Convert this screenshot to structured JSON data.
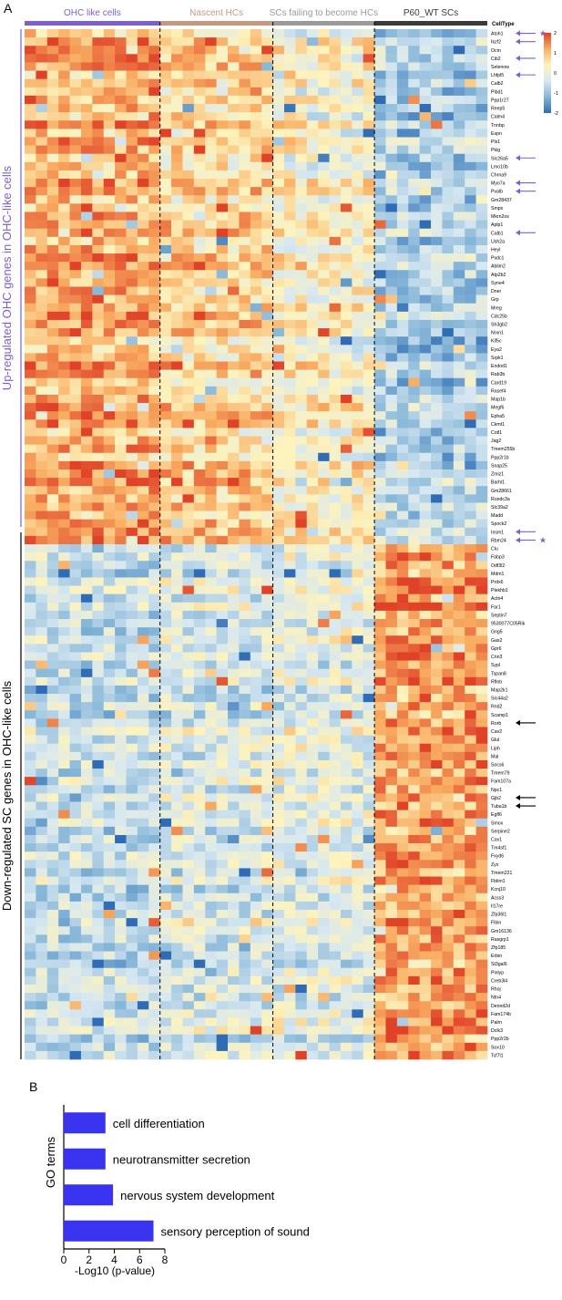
{
  "chart_data": [
    {
      "type": "heatmap",
      "panel_label": "A",
      "groups": [
        {
          "name": "OHC like cells",
          "color": "#7f5fcf",
          "columns": 12
        },
        {
          "name": "Nascent HCs",
          "color": "#c9977f",
          "columns": 10
        },
        {
          "name": "SCs failing to become HCs",
          "color": "#9a9a9a",
          "columns": 9
        },
        {
          "name": "P60_WT SCs",
          "color": "#3a3a3a",
          "columns": 10
        }
      ],
      "column_header": "CellType",
      "upregulated_block": {
        "label": "Up-regulated OHC genes in OHC-like cells",
        "color": "#7f5fcf",
        "genes": [
          "Atoh1",
          "Ikzf2",
          "Ocm",
          "Cib2",
          "Selenow",
          "Lhfpl5",
          "Calb2",
          "Pibd1",
          "Ppp1r27",
          "Reep5",
          "Calm4",
          "Tnnbp",
          "Espn",
          "Pls1",
          "Pkig",
          "Slc26a5",
          "Lmo10b",
          "Chrna9",
          "Myo7a",
          "Pvalb",
          "Gm28437",
          "Smpx",
          "Mkrn2os",
          "Aplp1",
          "Calb1",
          "Ush2a",
          "Heyl",
          "Pxdc1",
          "Ablim2",
          "Atp2b2",
          "Syne4",
          "Dner",
          "Grp",
          "Mreg",
          "Cdc25b",
          "Sh3gb2",
          "Nrxn1",
          "Kif5c",
          "Eya2",
          "Srpk1",
          "Endod1",
          "Rab3b",
          "Card19",
          "Rasef4",
          "Map1b",
          "Megf6",
          "Epha5",
          "Ckmt1",
          "Cotl1",
          "Jag2",
          "Tmem255b",
          "Ppp2r1b",
          "Snap25",
          "Zmiz1",
          "Barhl1",
          "Gm28661",
          "Rundc3a",
          "Slc39a2",
          "Madd",
          "Spock2",
          "Insm1",
          "Rbm24"
        ]
      },
      "downregulated_block": {
        "label": "Down-regulated SC genes in OHC-like cells",
        "color": "#000000",
        "genes": [
          "Clu",
          "Fabp3",
          "Odf3l2",
          "Mdm1",
          "Prdx6",
          "Plekhb1",
          "Actn4",
          "Far1",
          "Septin7",
          "9530077C05Rik",
          "Gng5",
          "Gas2",
          "Gpr6",
          "Cnn3",
          "Sypl",
          "Tspan8",
          "Rflnb",
          "Map2k1",
          "Slc44a2",
          "Rnd2",
          "Scamp1",
          "Rorb",
          "Cav2",
          "Glul",
          "Liph",
          "Mal",
          "Socs6",
          "Tmem79",
          "Fam107a",
          "Npc1",
          "Gjb2",
          "Tuba1b",
          "Egfl6",
          "Smox",
          "Serpine2",
          "Cav1",
          "Tm4sf1",
          "Fxyd6",
          "Zyx",
          "Tmem221",
          "Fblim1",
          "Kcnj10",
          "Acss3",
          "Il17re",
          "Zfp36l1",
          "Fibin",
          "Gm16136",
          "Rasgrp1",
          "Zfp185",
          "Erbin",
          "St3gal6",
          "Pinlyp",
          "Creb3l4",
          "Rhoj",
          "Ntn4",
          "Dennd2d",
          "Fam174b",
          "Palm",
          "Dclk3",
          "Ppp2r2b",
          "Sox10",
          "Tcf7l1"
        ]
      },
      "purple_arrow_genes": [
        "Atoh1",
        "Ikzf2",
        "Cib2",
        "Lhfpl5",
        "Slc26a5",
        "Myo7a",
        "Pvalb",
        "Calb1",
        "Insm1",
        "Rbm24"
      ],
      "star_genes": [
        "Atoh1",
        "Rbm24"
      ],
      "black_arrow_genes": [
        "Rorb",
        "Gjb2",
        "Tuba1b"
      ],
      "colorscale": {
        "ticks": [
          2,
          1,
          0,
          -1,
          -2
        ],
        "colors": [
          "#2f6cb5",
          "#86b6d8",
          "#d7e8f1",
          "#fdf3bd",
          "#f9ad62",
          "#e04228"
        ]
      },
      "dividers_after_column": [
        12,
        22,
        31
      ]
    },
    {
      "type": "bar",
      "panel_label": "B",
      "orientation": "horizontal",
      "categories": [
        "cell differentiation",
        "neurotransmitter secretion",
        "nervous system development",
        "sensory perception of sound"
      ],
      "values": [
        3.3,
        3.3,
        3.9,
        7.1
      ],
      "color": "#3a34f0",
      "xlabel": "-Log10 (p-value)",
      "ylabel": "GO terms",
      "xlim": [
        0,
        8
      ],
      "xticks": [
        "0",
        "2",
        "4",
        "6",
        "8"
      ]
    }
  ]
}
